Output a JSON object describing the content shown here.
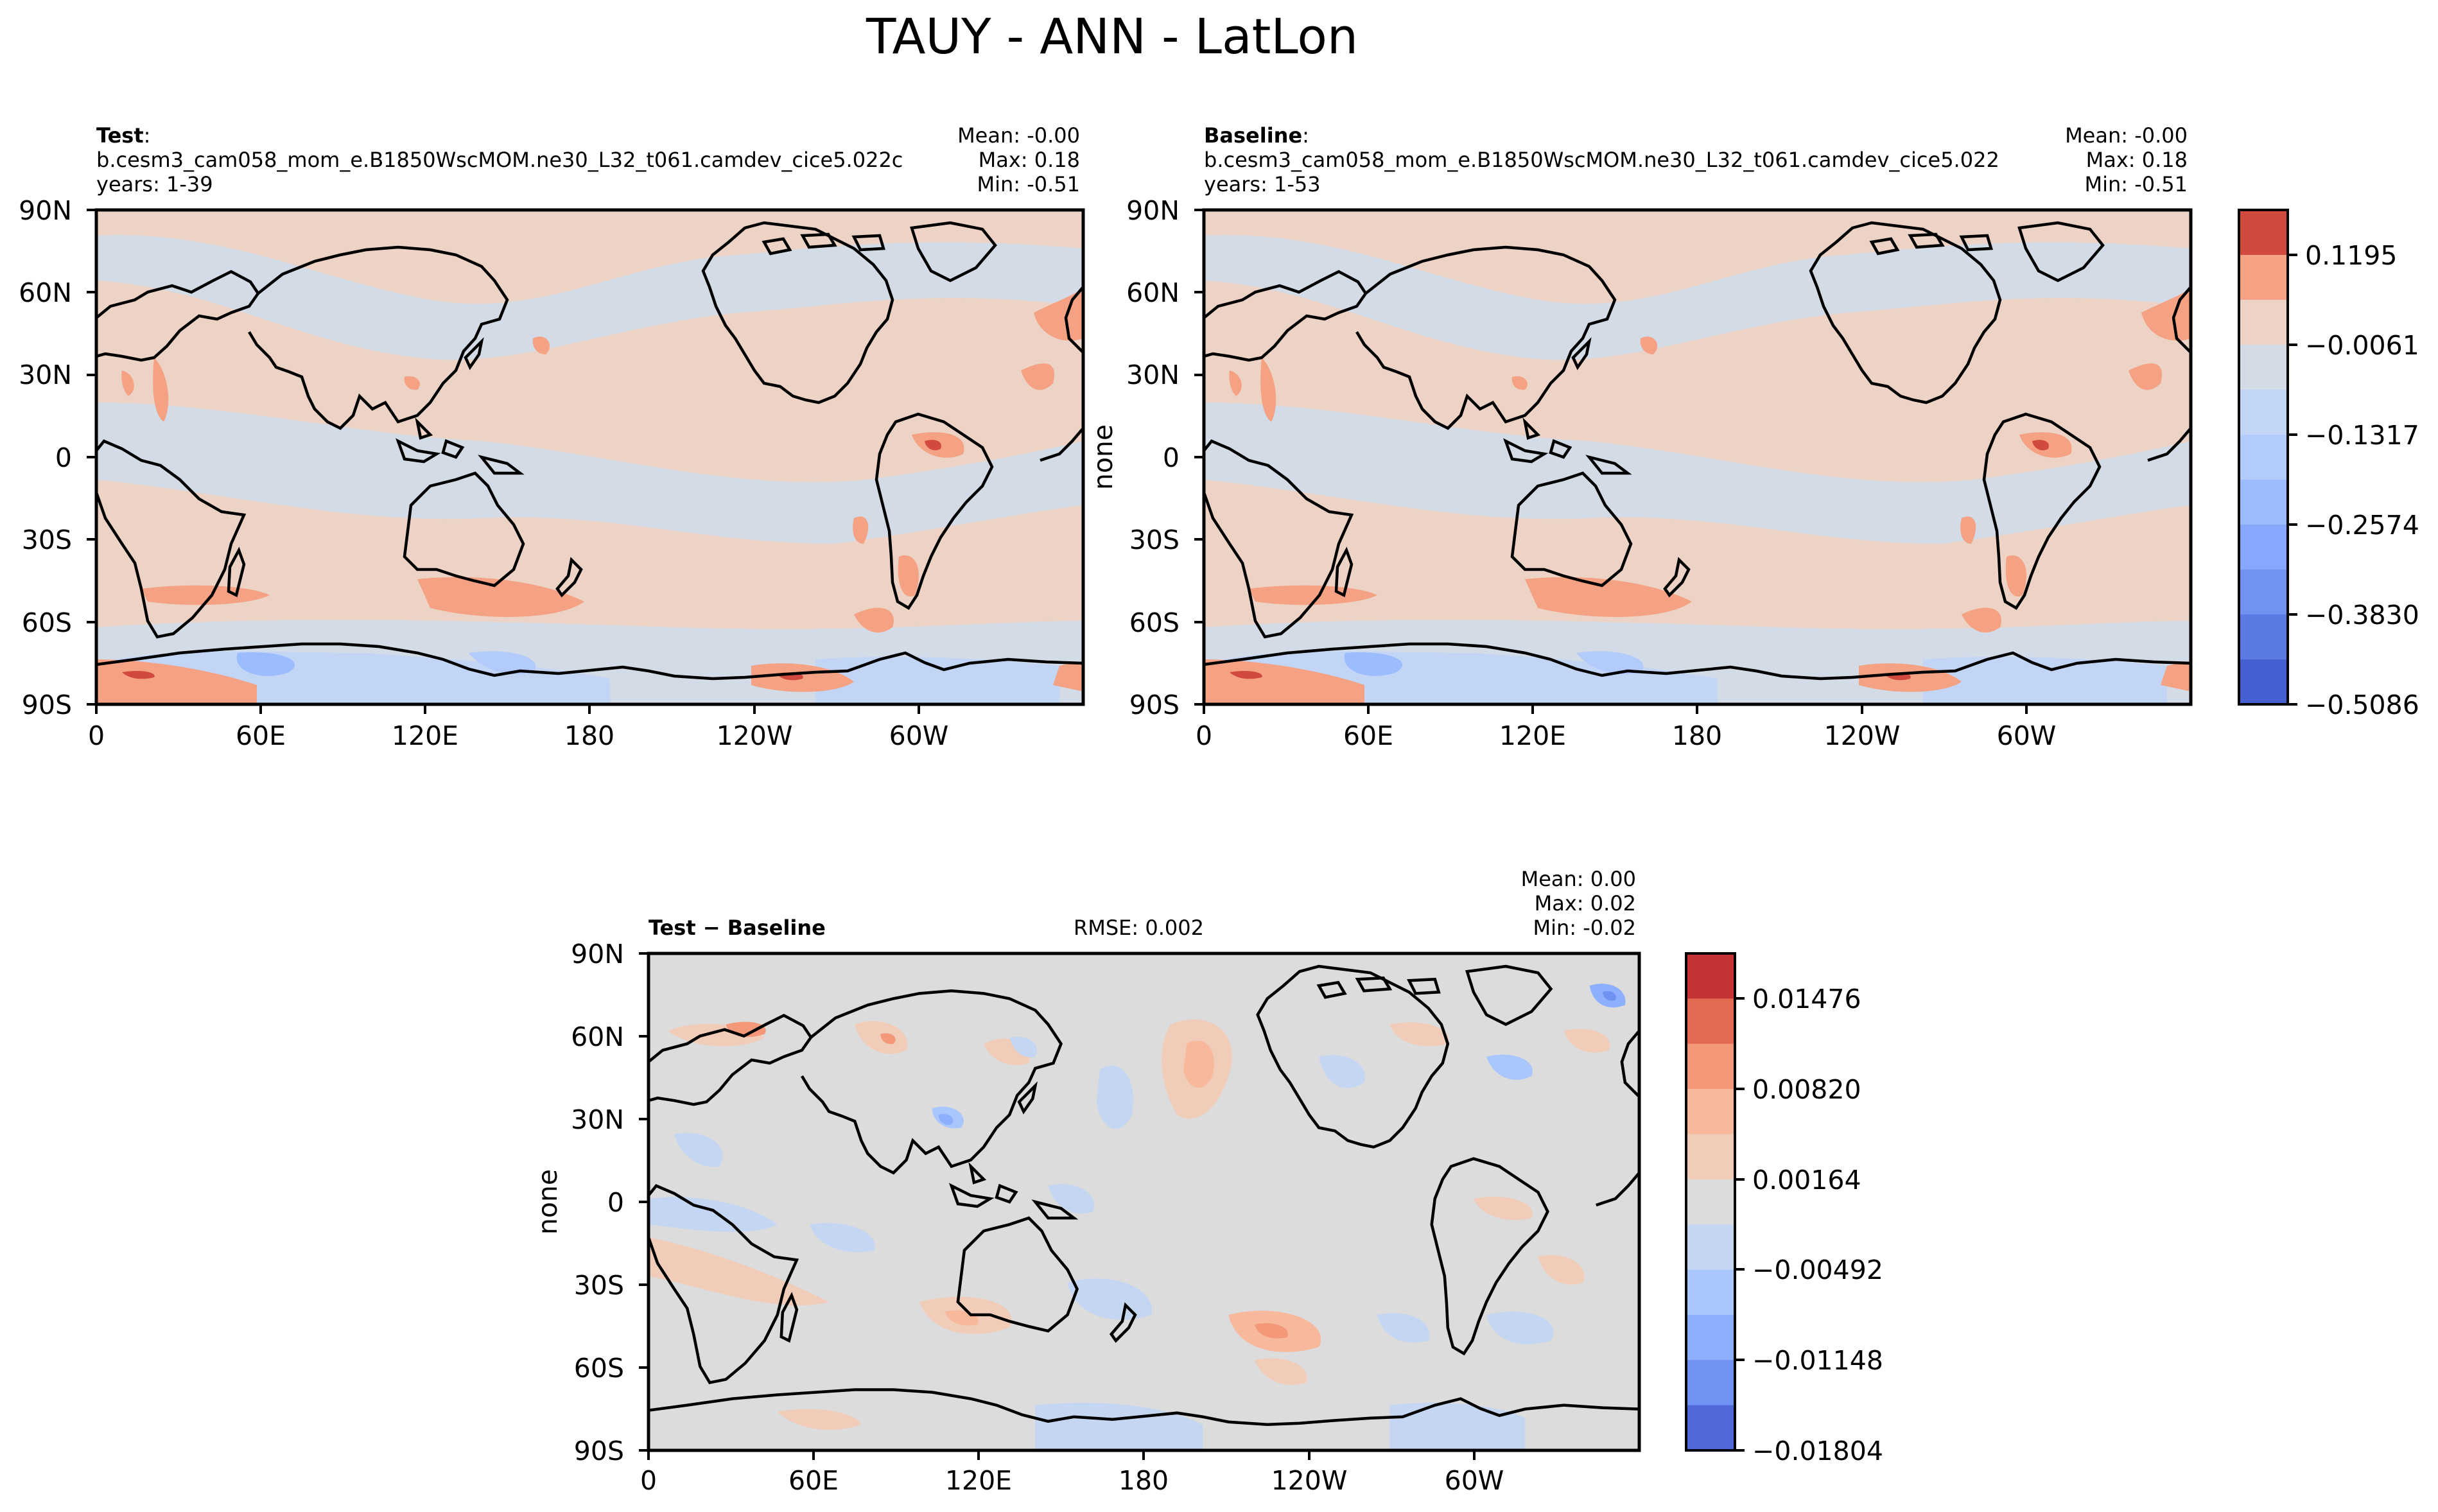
{
  "suptitle": "TAUY - ANN - LatLon",
  "panels": {
    "test": {
      "title_bold": "Test",
      "title_suffix": ":",
      "case": "b.cesm3_cam058_mom_e.B1850WscMOM.ne30_L32_t061.camdev_cice5.022c",
      "years": "years: 1-39",
      "stats": [
        "Mean: -0.00",
        "Max:  0.18",
        "Min: -0.51"
      ],
      "ylabel": ""
    },
    "baseline": {
      "title_bold": "Baseline",
      "title_suffix": ":",
      "case": "b.cesm3_cam058_mom_e.B1850WscMOM.ne30_L32_t061.camdev_cice5.022",
      "years": "years: 1-53",
      "stats": [
        "Mean: -0.00",
        "Max:  0.18",
        "Min: -0.51"
      ],
      "ylabel": "none"
    },
    "diff": {
      "title_bold": "Test − Baseline",
      "rmse": "RMSE: 0.002",
      "stats": [
        "Mean:  0.00",
        "Max:  0.02",
        "Min: -0.02"
      ],
      "ylabel": "none"
    }
  },
  "axes": {
    "lat_ticks": [
      "90N",
      "60N",
      "30N",
      "0",
      "30S",
      "60S",
      "90S"
    ],
    "lon_ticks": [
      "0",
      "60E",
      "120E",
      "180",
      "120W",
      "60W"
    ]
  },
  "colorbars": {
    "main": {
      "labels": [
        "0.1195",
        "−0.0061",
        "−0.1317",
        "−0.2574",
        "−0.3830",
        "−0.5086"
      ],
      "colors_top_to_bottom": [
        "#d24a3f",
        "#f4a283",
        "#ecd3c5",
        "#d3dbe6",
        "#c3d5f5",
        "#b2cbfb",
        "#9bbcff",
        "#85a8fc",
        "#7093f3",
        "#5b7be4",
        "#4560d0"
      ]
    },
    "diff": {
      "labels": [
        "0.01476",
        "0.00820",
        "0.00164",
        "−0.00492",
        "−0.01148",
        "−0.01804"
      ],
      "colors_top_to_bottom": [
        "#c53334",
        "#e26952",
        "#f4987a",
        "#f7b89c",
        "#f1ccb8",
        "#dcdcdc",
        "#c5d6f2",
        "#aac7fd",
        "#8db0fe",
        "#6f92f3",
        "#4f69d9"
      ]
    }
  },
  "chart_data": [
    {
      "type": "heatmap",
      "title": "Test",
      "variable": "TAUY",
      "projection": "PlateCarree (lat-lon)",
      "xlim": [
        0,
        360
      ],
      "ylim": [
        -90,
        90
      ],
      "stats": {
        "mean": -0.0,
        "max": 0.18,
        "min": -0.51
      },
      "contour_levels": [
        -0.5086,
        -0.383,
        -0.2574,
        -0.1317,
        -0.0061,
        0.1195
      ]
    },
    {
      "type": "heatmap",
      "title": "Baseline",
      "variable": "TAUY",
      "projection": "PlateCarree (lat-lon)",
      "xlim": [
        0,
        360
      ],
      "ylim": [
        -90,
        90
      ],
      "stats": {
        "mean": -0.0,
        "max": 0.18,
        "min": -0.51
      },
      "contour_levels": [
        -0.5086,
        -0.383,
        -0.2574,
        -0.1317,
        -0.0061,
        0.1195
      ]
    },
    {
      "type": "heatmap",
      "title": "Test − Baseline",
      "variable": "TAUY",
      "projection": "PlateCarree (lat-lon)",
      "xlim": [
        0,
        360
      ],
      "ylim": [
        -90,
        90
      ],
      "stats": {
        "mean": 0.0,
        "max": 0.02,
        "min": -0.02,
        "rmse": 0.002
      },
      "contour_levels": [
        -0.01804,
        -0.01148,
        -0.00492,
        0.00164,
        0.0082,
        0.01476
      ]
    }
  ]
}
